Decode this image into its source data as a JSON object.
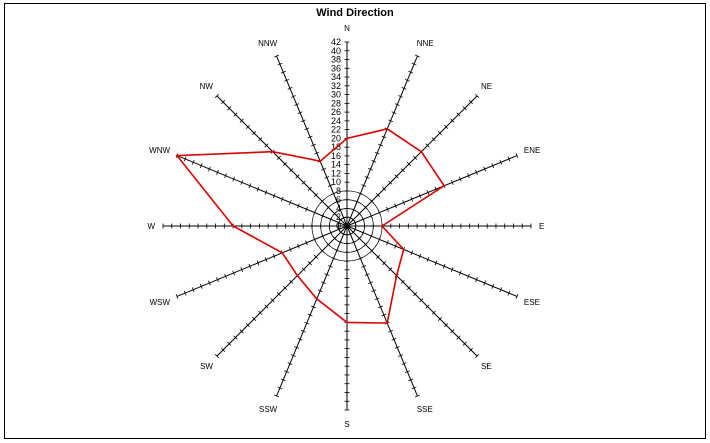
{
  "chart_data": {
    "type": "radar",
    "title": "Wind Direction",
    "categories": [
      "N",
      "NNE",
      "NE",
      "ENE",
      "E",
      "ESE",
      "SE",
      "SSE",
      "S",
      "SSW",
      "SW",
      "WSW",
      "W",
      "WNW",
      "NW",
      "NNW"
    ],
    "values": [
      20,
      24,
      24,
      24,
      8,
      14,
      16,
      24,
      22,
      18,
      16,
      16,
      26,
      42,
      24,
      16
    ],
    "rlim": [
      0,
      42
    ],
    "rticks": [
      0,
      2,
      4,
      6,
      8,
      10,
      12,
      14,
      16,
      18,
      20,
      22,
      24,
      26,
      28,
      30,
      32,
      34,
      36,
      38,
      40,
      42
    ],
    "series_color": "#dd0000"
  }
}
